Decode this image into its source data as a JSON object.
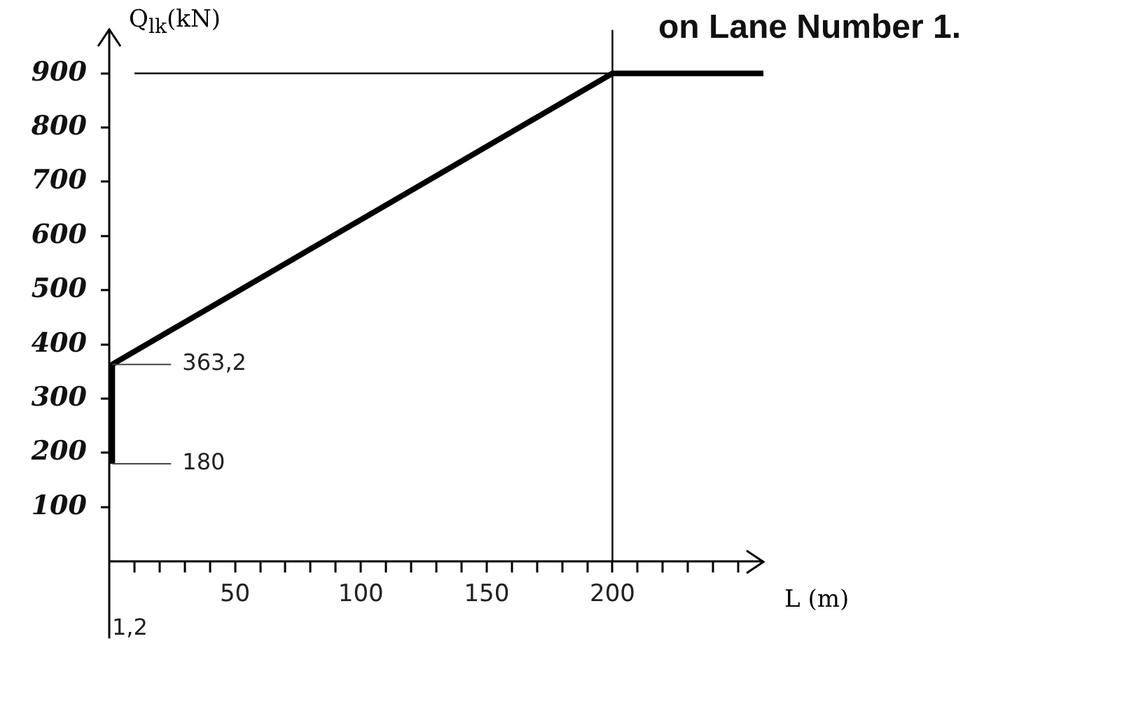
{
  "chart_data": {
    "type": "line",
    "title": "on Lane Number 1.",
    "xlabel": "L (m)",
    "ylabel": "Q$_{lk}$(kN)",
    "series": [
      {
        "color": "#000000",
        "x": [
          1.2,
          1.2,
          200,
          260
        ],
        "values": [
          180,
          363.2,
          900,
          900
        ]
      }
    ],
    "xlim": [
      0,
      260
    ],
    "ylim": [
      0,
      980
    ],
    "xticks": [
      {
        "value": 10,
        "label": null
      },
      {
        "value": 20,
        "label": null
      },
      {
        "value": 30,
        "label": null
      },
      {
        "value": 40,
        "label": null
      },
      50,
      {
        "value": 60,
        "label": null
      },
      {
        "value": 70,
        "label": null
      },
      {
        "value": 80,
        "label": null
      },
      {
        "value": 90,
        "label": null
      },
      100,
      {
        "value": 110,
        "label": null
      },
      {
        "value": 120,
        "label": null
      },
      {
        "value": 130,
        "label": null
      },
      {
        "value": 140,
        "label": null
      },
      150,
      {
        "value": 160,
        "label": null
      },
      {
        "value": 170,
        "label": null
      },
      {
        "value": 180,
        "label": null
      },
      {
        "value": 190,
        "label": null
      },
      200,
      {
        "value": 210,
        "label": null
      },
      {
        "value": 220,
        "label": null
      },
      {
        "value": 230,
        "label": null
      },
      {
        "value": 240,
        "label": null
      },
      {
        "value": 250,
        "label": null
      }
    ],
    "yticks": [
      100,
      200,
      300,
      400,
      500,
      600,
      700,
      800,
      900
    ],
    "ref_lines": [
      {
        "axis": "y",
        "value": 900,
        "color": "#000000"
      },
      {
        "axis": "x",
        "value": 200,
        "color": "#000000"
      }
    ],
    "annotations": [
      {
        "text": "363,2",
        "x": 1.2,
        "y": 363.2
      },
      {
        "text": "180",
        "x": 1.2,
        "y": 180
      },
      "1,2"
    ],
    "grid": false,
    "legend": false,
    "marker": "none",
    "line_style": "solid"
  }
}
